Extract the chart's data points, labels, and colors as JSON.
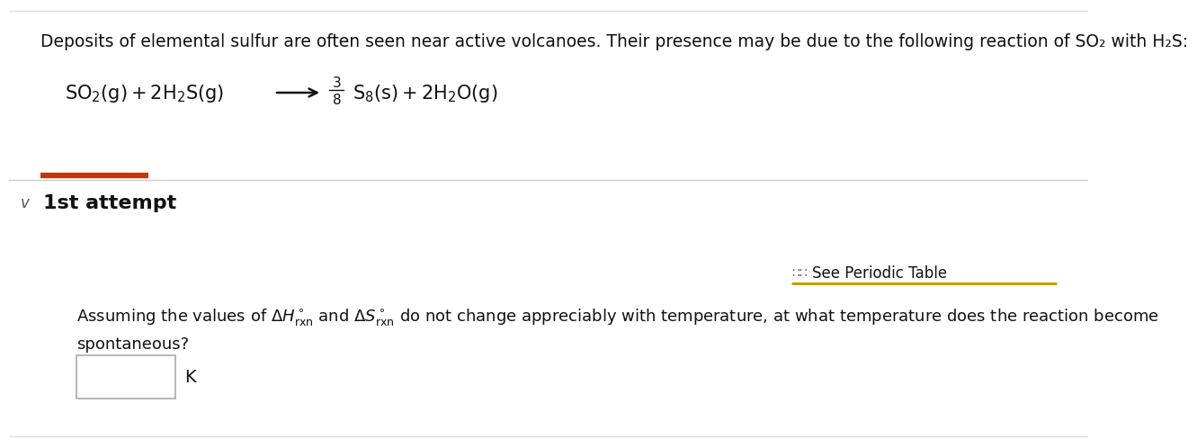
{
  "background_color": "#ffffff",
  "top_text": "Deposits of elemental sulfur are often seen near active volcanoes. Their presence may be due to the following reaction of SO₂ with H₂S:",
  "divider_color": "#cc3300",
  "attempt_label": "1st attempt",
  "unit_label": "K",
  "main_font_size": 13.5,
  "reaction_font_size": 15,
  "attempt_font_size": 16,
  "question_font_size": 13,
  "periodic_font_size": 12,
  "top_border_color": "#e0e0e0",
  "bottom_border_color": "#e0e0e0",
  "mid_border_color": "#cccccc",
  "periodic_underline_color": "#c8a000",
  "input_box_edge": "#aaaaaa"
}
